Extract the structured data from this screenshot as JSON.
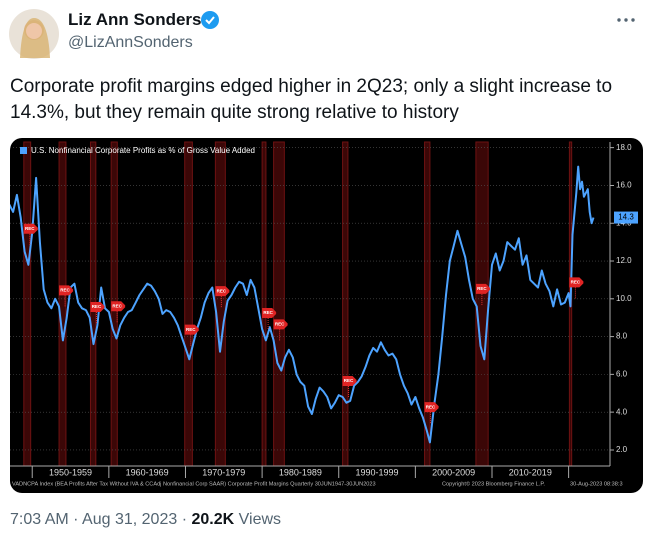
{
  "tweet": {
    "name": "Liz Ann Sonders",
    "handle": "@LizAnnSonders",
    "text": "Corporate profit margins edged higher in 2Q23; only a slight increase to 14.3%, but they remain quite strong relative to history",
    "time": "7:03 AM",
    "date": "Aug 31, 2023",
    "views_count": "20.2K",
    "views_label": "Views",
    "separator": "·"
  },
  "chart_data": {
    "type": "line",
    "legend": "U.S. Nonfinancial Corporate Profits as % of Gross Value Added",
    "footer": "VADNCPA Index (BEA Profits After Tax Without IVA & CCAdj Nonfinancial Corp SAAR) Corporate Profit Margins Quarterly 30JUN1947-30JUN2023",
    "copyright": "Copyright© 2023 Bloomberg Finance L.P.",
    "timestamp": "30-Aug-2023 08:38:3",
    "last_value_label": "14.3",
    "recession_label": "REC",
    "x": [
      1947.0,
      1947.5,
      1948.0,
      1948.5,
      1949.0,
      1949.5,
      1950.0,
      1950.5,
      1951.0,
      1951.5,
      1952.0,
      1952.5,
      1953.0,
      1953.5,
      1954.0,
      1954.5,
      1955.0,
      1955.5,
      1956.0,
      1956.5,
      1957.0,
      1957.5,
      1958.0,
      1958.5,
      1959.0,
      1959.5,
      1960.0,
      1960.5,
      1961.0,
      1961.5,
      1962.0,
      1962.5,
      1963.0,
      1963.5,
      1964.0,
      1964.5,
      1965.0,
      1965.5,
      1966.0,
      1966.5,
      1967.0,
      1967.5,
      1968.0,
      1968.5,
      1969.0,
      1969.5,
      1970.0,
      1970.5,
      1971.0,
      1971.5,
      1972.0,
      1972.5,
      1973.0,
      1973.5,
      1974.0,
      1974.5,
      1975.0,
      1975.5,
      1976.0,
      1976.5,
      1977.0,
      1977.5,
      1978.0,
      1978.5,
      1979.0,
      1979.5,
      1980.0,
      1980.5,
      1981.0,
      1981.5,
      1982.0,
      1982.5,
      1983.0,
      1983.5,
      1984.0,
      1984.5,
      1985.0,
      1985.5,
      1986.0,
      1986.5,
      1987.0,
      1987.5,
      1988.0,
      1988.5,
      1989.0,
      1989.5,
      1990.0,
      1990.5,
      1991.0,
      1991.5,
      1992.0,
      1992.5,
      1993.0,
      1993.5,
      1994.0,
      1994.5,
      1995.0,
      1995.5,
      1996.0,
      1996.5,
      1997.0,
      1997.5,
      1998.0,
      1998.5,
      1999.0,
      1999.5,
      2000.0,
      2000.5,
      2001.0,
      2001.5,
      2001.9,
      2002.5,
      2003.0,
      2003.5,
      2004.0,
      2004.5,
      2005.0,
      2005.5,
      2006.0,
      2006.5,
      2007.0,
      2007.5,
      2008.0,
      2008.5,
      2009.0,
      2009.5,
      2010.0,
      2010.5,
      2011.0,
      2011.5,
      2012.0,
      2012.5,
      2013.0,
      2013.5,
      2014.0,
      2014.5,
      2015.0,
      2015.5,
      2016.0,
      2016.5,
      2017.0,
      2017.5,
      2018.0,
      2018.5,
      2019.0,
      2019.5,
      2020.0,
      2020.25,
      2020.5,
      2021.0,
      2021.25,
      2021.5,
      2021.75,
      2022.0,
      2022.5,
      2022.75,
      2023.0,
      2023.25
    ],
    "series": [
      {
        "name": "U.S. Nonfinancial Corporate Profits as % of Gross Value Added",
        "color": "#4da3ff",
        "values": [
          15.0,
          14.6,
          15.5,
          14.3,
          12.5,
          11.8,
          13.5,
          16.4,
          13.0,
          10.5,
          9.8,
          9.5,
          10.0,
          9.6,
          7.8,
          9.0,
          10.6,
          10.8,
          9.8,
          9.5,
          9.4,
          9.0,
          7.6,
          8.6,
          10.6,
          9.5,
          9.3,
          8.4,
          7.9,
          8.6,
          9.0,
          9.3,
          9.4,
          9.8,
          10.2,
          10.5,
          10.8,
          10.7,
          10.4,
          10.0,
          9.2,
          9.4,
          9.3,
          9.0,
          8.6,
          8.0,
          7.4,
          6.8,
          7.6,
          8.4,
          9.0,
          9.8,
          10.3,
          10.6,
          9.3,
          7.2,
          8.8,
          9.9,
          10.2,
          10.6,
          10.9,
          10.8,
          10.2,
          11.0,
          10.6,
          9.5,
          8.4,
          7.8,
          8.5,
          7.8,
          6.6,
          6.2,
          6.9,
          7.3,
          6.9,
          6.0,
          5.6,
          5.4,
          4.3,
          3.9,
          4.7,
          5.3,
          5.1,
          4.8,
          4.2,
          4.5,
          4.9,
          4.8,
          4.5,
          4.6,
          5.4,
          5.6,
          5.9,
          6.4,
          7.0,
          7.4,
          7.2,
          7.7,
          7.3,
          7.0,
          7.1,
          6.8,
          6.0,
          5.4,
          5.0,
          4.4,
          4.8,
          4.2,
          3.7,
          3.0,
          2.4,
          4.5,
          6.0,
          8.0,
          10.2,
          12.0,
          12.8,
          13.6,
          12.9,
          12.2,
          11.0,
          10.0,
          9.6,
          7.5,
          6.8,
          9.5,
          11.8,
          12.4,
          11.5,
          12.0,
          13.0,
          12.8,
          12.6,
          13.2,
          11.8,
          12.3,
          11.0,
          10.8,
          10.6,
          11.5,
          10.8,
          10.4,
          9.6,
          10.5,
          9.7,
          9.8,
          10.3,
          9.6,
          13.4,
          15.6,
          17.0,
          15.8,
          16.2,
          15.4,
          15.8,
          14.6,
          14.0,
          14.3
        ]
      }
    ],
    "recessions": [
      [
        1948.9,
        1949.8
      ],
      [
        1953.5,
        1954.4
      ],
      [
        1957.6,
        1958.3
      ],
      [
        1960.3,
        1961.1
      ],
      [
        1969.9,
        1970.9
      ],
      [
        1973.9,
        1975.2
      ],
      [
        1980.0,
        1980.5
      ],
      [
        1981.5,
        1982.9
      ],
      [
        1990.5,
        1991.2
      ],
      [
        2001.2,
        2001.9
      ],
      [
        2007.9,
        2009.5
      ],
      [
        2020.1,
        2020.4
      ]
    ],
    "xlim": [
      1947.1,
      2025.4
    ],
    "xticks": [
      1950,
      1960,
      1970,
      1980,
      1990,
      2000,
      2010,
      2020
    ],
    "decade_labels": [
      "1950-1959",
      "1960-1969",
      "1970-1979",
      "1980-1989",
      "1990-1999",
      "2000-2009",
      "2010-2019"
    ],
    "ylim": [
      1.15,
      18.3
    ],
    "yticks": [
      {
        "value": 2,
        "label": "2.0"
      },
      {
        "value": 4,
        "label": "4.0"
      },
      {
        "value": 6,
        "label": "6.0"
      },
      {
        "value": 8,
        "label": "8.0"
      },
      {
        "value": 10,
        "label": "10.0"
      },
      {
        "value": 12,
        "label": "12.0"
      },
      {
        "value": 14,
        "label": "14.0"
      },
      {
        "value": 16,
        "label": "16.0"
      },
      {
        "value": 18,
        "label": "18.0"
      }
    ],
    "grid": true
  }
}
